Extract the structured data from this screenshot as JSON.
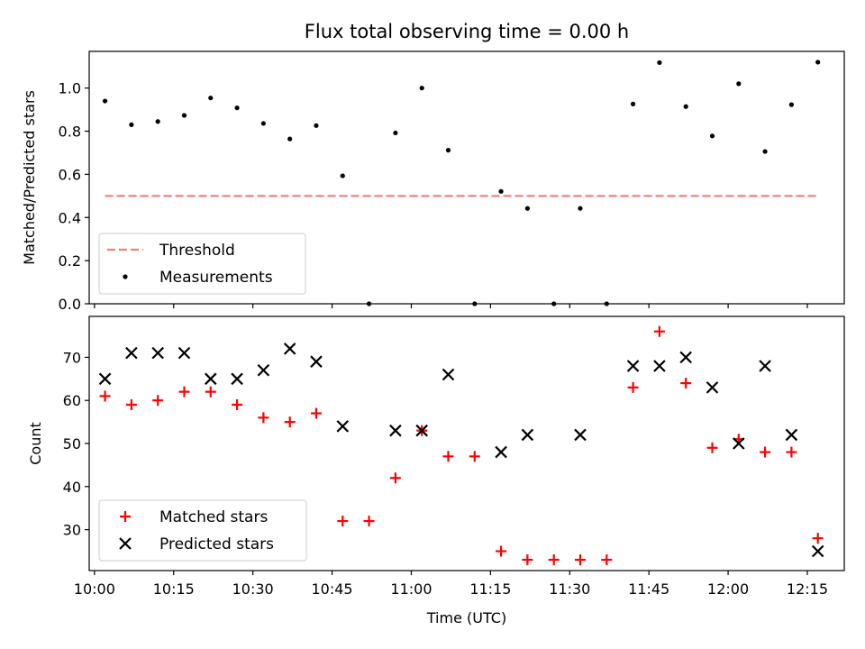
{
  "chart_data": [
    {
      "type": "scatter",
      "title": "Flux total observing time = 0.00 h",
      "ylabel": "Matched/Predicted stars",
      "xlabel": "",
      "xlim": [
        "09:59",
        "12:22"
      ],
      "ylim": [
        0,
        1.17
      ],
      "yticks": [
        0.0,
        0.2,
        0.4,
        0.6,
        0.8,
        1.0
      ],
      "ytick_labels": [
        "0.0",
        "0.2",
        "0.4",
        "0.6",
        "0.8",
        "1.0"
      ],
      "grid": false,
      "legend_placement": "lower-left",
      "threshold": {
        "name": "Threshold",
        "value": 0.5,
        "x": [
          "10:02",
          "12:17"
        ],
        "color": "#f08080",
        "style": "dashed"
      },
      "series": [
        {
          "name": "Measurements",
          "color": "#000000",
          "marker": "dot",
          "x": [
            "10:02",
            "10:07",
            "10:12",
            "10:17",
            "10:22",
            "10:27",
            "10:32",
            "10:37",
            "10:42",
            "10:47",
            "10:52",
            "10:57",
            "11:02",
            "11:07",
            "11:12",
            "11:17",
            "11:22",
            "11:27",
            "11:32",
            "11:37",
            "11:42",
            "11:47",
            "11:52",
            "11:57",
            "12:02",
            "12:07",
            "12:12",
            "12:17"
          ],
          "y": [
            0.94,
            0.83,
            0.845,
            0.873,
            0.954,
            0.908,
            0.836,
            0.764,
            0.826,
            0.593,
            0.0,
            0.792,
            1.0,
            0.712,
            0.0,
            0.521,
            0.442,
            0.0,
            0.442,
            0.0,
            0.926,
            1.118,
            0.914,
            0.778,
            1.02,
            0.706,
            0.923,
            1.12
          ]
        }
      ]
    },
    {
      "type": "scatter",
      "title": "",
      "xlabel": "Time (UTC)",
      "ylabel": "Count",
      "xlim": [
        "09:59",
        "12:22"
      ],
      "ylim": [
        20.5,
        79.5
      ],
      "xticks": [
        "10:00",
        "10:15",
        "10:30",
        "10:45",
        "11:00",
        "11:15",
        "11:30",
        "11:45",
        "12:00",
        "12:15"
      ],
      "yticks": [
        30,
        40,
        50,
        60,
        70
      ],
      "ytick_labels": [
        "30",
        "40",
        "50",
        "60",
        "70"
      ],
      "grid": false,
      "legend_placement": "lower-left",
      "series": [
        {
          "name": "Matched stars",
          "color": "#ff0000",
          "marker": "plus",
          "x": [
            "10:02",
            "10:07",
            "10:12",
            "10:17",
            "10:22",
            "10:27",
            "10:32",
            "10:37",
            "10:42",
            "10:47",
            "10:52",
            "10:57",
            "11:02",
            "11:07",
            "11:12",
            "11:17",
            "11:22",
            "11:27",
            "11:32",
            "11:37",
            "11:42",
            "11:47",
            "11:52",
            "11:57",
            "12:02",
            "12:07",
            "12:12",
            "12:17"
          ],
          "y": [
            61,
            59,
            60,
            62,
            62,
            59,
            56,
            55,
            57,
            32,
            32,
            42,
            53,
            47,
            47,
            25,
            23,
            23,
            23,
            23,
            63,
            76,
            64,
            49,
            51,
            48,
            48,
            28
          ]
        },
        {
          "name": "Predicted stars",
          "color": "#000000",
          "marker": "x",
          "x": [
            "10:02",
            "10:07",
            "10:12",
            "10:17",
            "10:22",
            "10:27",
            "10:32",
            "10:37",
            "10:42",
            "10:47",
            "10:57",
            "11:02",
            "11:07",
            "11:17",
            "11:22",
            "11:32",
            "11:42",
            "11:47",
            "11:52",
            "11:57",
            "12:02",
            "12:07",
            "12:12",
            "12:17"
          ],
          "y": [
            65,
            71,
            71,
            71,
            65,
            65,
            67,
            72,
            69,
            54,
            53,
            53,
            66,
            48,
            52,
            52,
            68,
            68,
            70,
            63,
            50,
            68,
            52,
            25
          ]
        }
      ]
    }
  ]
}
